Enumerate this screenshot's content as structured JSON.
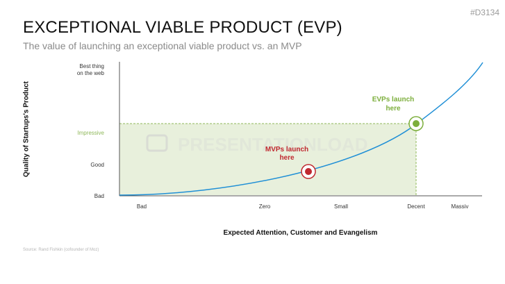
{
  "header": {
    "title": "EXCEPTIONAL VIABLE PRODUCT (EVP)",
    "subtitle": "The value of launching an exceptional viable product vs. an MVP",
    "code": "#D3134"
  },
  "watermark": "PRESENTATIONLOAD",
  "source": "Source: Rand Fishkin (cofounder of Moz)",
  "chart_data": {
    "type": "line",
    "xlabel": "Expected Attention, Customer and Evangelism",
    "ylabel": "Quality of Startups's Product",
    "x_ticks": [
      "Bad",
      "Zero",
      "Small",
      "Decent",
      "Massiv"
    ],
    "y_ticks": [
      {
        "label": "Bad",
        "highlight": false
      },
      {
        "label": "Good",
        "highlight": false
      },
      {
        "label": "Impressive",
        "highlight": true
      },
      {
        "label": "Best thing on the web",
        "highlight": false
      }
    ],
    "curve": "exponential",
    "points": [
      {
        "name": "MVPs launch here",
        "x": "Zero–Small",
        "y": "Bad–Good",
        "color": "#c0282f"
      },
      {
        "name": "EVPs launch here",
        "x": "Decent",
        "y": "Impressive",
        "color": "#7cae3c"
      }
    ],
    "shaded_region": {
      "color": "#e8f0dc",
      "x_to": "Decent",
      "y_to": "Impressive"
    },
    "colors": {
      "curve": "#1f8fd6",
      "axis": "#444444",
      "impressive": "#8fb85a"
    }
  }
}
